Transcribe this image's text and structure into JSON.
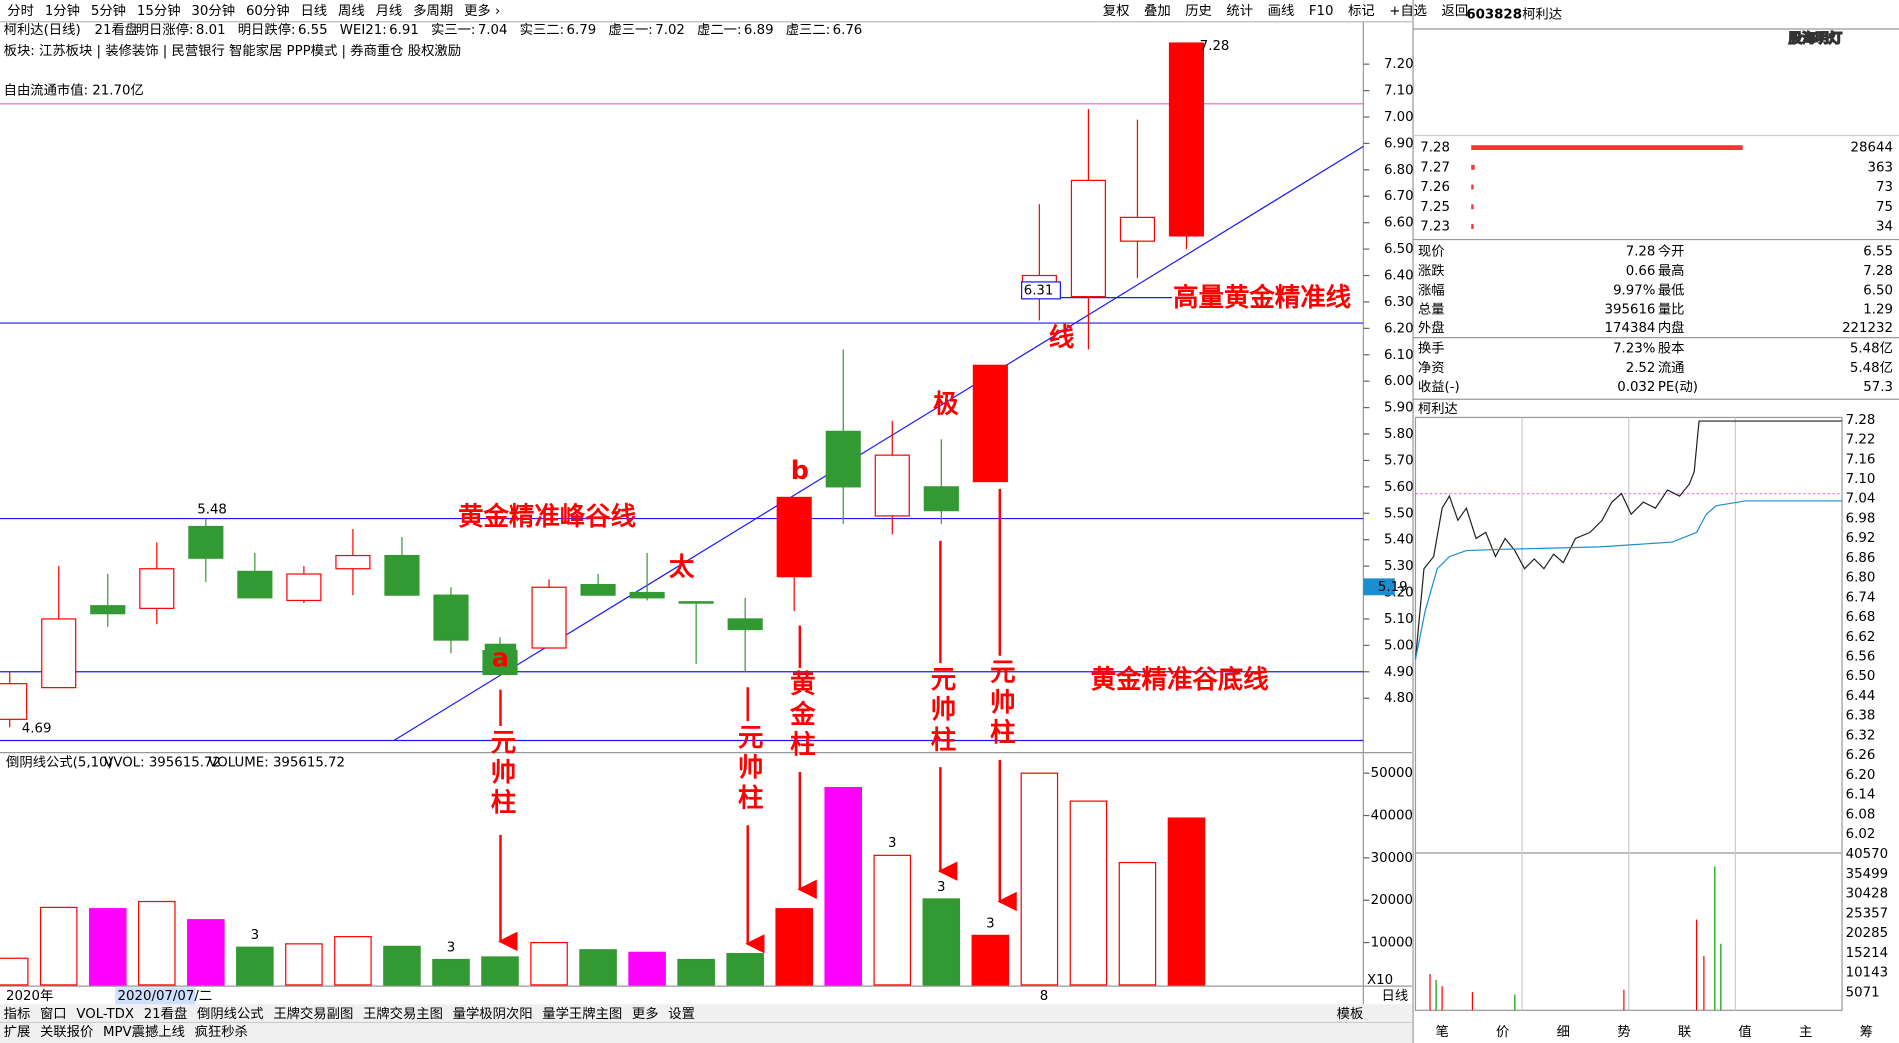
{
  "toolbar": {
    "periods": [
      "分时",
      "1分钟",
      "5分钟",
      "15分钟",
      "30分钟",
      "60分钟",
      "日线",
      "周线",
      "月线",
      "多周期",
      "更多 ›"
    ],
    "tools": [
      "复权",
      "叠加",
      "历史",
      "统计",
      "画线",
      "F10",
      "标记",
      "+自选",
      "返回"
    ]
  },
  "header": {
    "stock": "柯利达(日线)",
    "tab": "21看盘",
    "indicators": [
      {
        "label": "明日涨停:",
        "value": "8.01",
        "color": "#ff0000"
      },
      {
        "label": "明日跌停:",
        "value": "6.55",
        "color": "#00a000"
      },
      {
        "label": "WEI21:",
        "value": "6.91",
        "color": "#000000"
      },
      {
        "label": "实三一:",
        "value": "7.04",
        "color": "#00b0b0"
      },
      {
        "label": "实三二:",
        "value": "6.79",
        "color": "#000000"
      },
      {
        "label": "虚三一:",
        "value": "7.02",
        "color": "#0000ff"
      },
      {
        "label": "虚二一:",
        "value": "6.89",
        "color": "#0000ff"
      },
      {
        "label": "虚三二:",
        "value": "6.76",
        "color": "#808080"
      }
    ],
    "concepts": "板块: 江苏板块 | 装修装饰 | 民营银行 智能家居 PPP模式 | 券商重仓 股权激励",
    "market_cap": "自由流通市值: 21.70亿"
  },
  "chart_data": [
    {
      "type": "candlestick",
      "open": [
        4.72,
        4.84,
        5.15,
        5.14,
        5.45,
        5.28,
        5.17,
        5.29,
        5.34,
        5.19,
        4.98,
        4.99,
        5.23,
        5.2,
        5.165,
        5.1,
        5.26,
        5.81,
        5.49,
        5.6,
        5.62,
        6.32,
        6.32,
        6.53,
        6.55
      ],
      "close": [
        4.855,
        5.1,
        5.12,
        5.29,
        5.33,
        5.18,
        5.27,
        5.34,
        5.19,
        5.02,
        4.89,
        5.22,
        5.19,
        5.18,
        5.16,
        5.06,
        5.56,
        5.6,
        5.72,
        5.51,
        6.06,
        6.4,
        6.76,
        6.62,
        7.28
      ],
      "high": [
        4.9,
        5.3,
        5.27,
        5.39,
        5.48,
        5.35,
        5.3,
        5.44,
        5.41,
        5.22,
        5.03,
        5.25,
        5.27,
        5.35,
        5.16,
        5.18,
        5.56,
        6.12,
        5.85,
        5.78,
        6.06,
        6.67,
        7.03,
        6.99,
        7.28
      ],
      "low": [
        4.69,
        4.84,
        5.07,
        5.08,
        5.24,
        5.18,
        5.16,
        5.19,
        5.19,
        4.97,
        4.89,
        4.99,
        5.19,
        5.17,
        4.93,
        4.9,
        5.13,
        5.46,
        5.42,
        5.46,
        5.62,
        6.23,
        6.12,
        6.39,
        6.5
      ],
      "styles": [
        "hollow",
        "hollow",
        "green",
        "hollow",
        "green",
        "green",
        "hollow",
        "hollow",
        "green",
        "green",
        "green",
        "hollow",
        "green",
        "green",
        "green",
        "green",
        "red",
        "green",
        "hollow",
        "green",
        "red",
        "hollow",
        "hollow",
        "hollow",
        "red"
      ],
      "palette": {
        "hollow": "#ff0000",
        "red": "#ff0000",
        "green": "#339933"
      },
      "ylim": [
        4.6,
        7.3
      ],
      "yticks": [
        {
          "value": 4.8,
          "label": "4.80"
        },
        {
          "value": 4.9,
          "label": "4.90"
        },
        {
          "value": 5.0,
          "label": "5.00"
        },
        {
          "value": 5.1,
          "label": "5.10"
        },
        {
          "value": 5.2,
          "label": "5.20"
        },
        {
          "value": 5.3,
          "label": "5.30"
        },
        {
          "value": 5.4,
          "label": "5.40"
        },
        {
          "value": 5.5,
          "label": "5.50"
        },
        {
          "value": 5.6,
          "label": "5.60"
        },
        {
          "value": 5.7,
          "label": "5.70"
        },
        {
          "value": 5.8,
          "label": "5.80"
        },
        {
          "value": 5.9,
          "label": "5.90"
        },
        {
          "value": 6.0,
          "label": "6.00"
        },
        {
          "value": 6.1,
          "label": "6.10"
        },
        {
          "value": 6.2,
          "label": "6.20"
        },
        {
          "value": 6.3,
          "label": "6.30"
        },
        {
          "value": 6.4,
          "label": "6.40"
        },
        {
          "value": 6.5,
          "label": "6.50"
        },
        {
          "value": 6.6,
          "label": "6.60"
        },
        {
          "value": 6.7,
          "label": "6.70"
        },
        {
          "value": 6.8,
          "label": "6.80"
        },
        {
          "value": 6.9,
          "label": "6.90"
        },
        {
          "value": 7.0,
          "label": "7.00"
        },
        {
          "value": 7.1,
          "label": "7.10"
        },
        {
          "value": 7.2,
          "label": "7.20"
        }
      ],
      "hlines": [
        6.22,
        5.48,
        4.9,
        4.64
      ],
      "ref_line": 7.05,
      "price_notes": [
        "7.28",
        "6.31",
        "5.48",
        "4.69",
        "5.19"
      ],
      "annotations": [
        "高量黄金精准线",
        "线",
        "极",
        "黄金精准峰谷线",
        "太",
        "b",
        "a",
        "黄金精准谷底线"
      ],
      "pillars": [
        "元帅柱",
        "元帅柱",
        "黄金柱",
        "元帅柱",
        "元帅柱"
      ],
      "x_labels": [
        "2020年",
        "2020/07/07/二",
        "8"
      ]
    },
    {
      "type": "bar",
      "title": "倒阴线公式(5,10)",
      "legend": [
        "VVOL: 395615.72",
        "VOLUME: 395615.72"
      ],
      "values": [
        6300,
        18300,
        18000,
        19700,
        15400,
        8900,
        9700,
        11400,
        9100,
        6000,
        6600,
        10000,
        8300,
        7700,
        6000,
        7400,
        18000,
        46600,
        30600,
        20300,
        11700,
        50000,
        43400,
        28900,
        39400
      ],
      "styles": [
        "hollow",
        "hollow",
        "magenta",
        "hollow",
        "magenta",
        "green",
        "hollow",
        "hollow",
        "green",
        "green",
        "green",
        "hollow",
        "green",
        "magenta",
        "green",
        "green",
        "red",
        "magenta",
        "hollow",
        "green",
        "red",
        "hollow",
        "hollow",
        "hollow",
        "red"
      ],
      "palette": {
        "hollow": "#ff0000",
        "red": "#ff0000",
        "green": "#339933",
        "magenta": "#ff00ff"
      },
      "signals": [
        null,
        null,
        null,
        null,
        null,
        "3",
        null,
        null,
        null,
        "3",
        null,
        null,
        null,
        null,
        null,
        null,
        null,
        null,
        "3",
        "3",
        "3",
        null,
        null,
        null,
        null
      ],
      "ylim": [
        0,
        54000
      ],
      "yticks": [
        10000,
        20000,
        30000,
        40000,
        50000
      ],
      "scale_note": "X10"
    }
  ],
  "tabs": [
    "指标",
    "窗口",
    "VOL-TDX",
    "21看盘",
    "倒阴线公式",
    "王牌交易副图",
    "王牌交易主图",
    "量学极阴次阳",
    "量学王牌主图",
    "更多",
    "设置"
  ],
  "tab_right": [
    "模板",
    "日线"
  ],
  "status": [
    "扩展",
    "关联报价",
    "MPV震撼上线",
    "疯狂秒杀"
  ],
  "quote": {
    "code": "603828",
    "name": "柯利达",
    "watermark": "股海明灯",
    "book": {
      "prices": [
        "7.28",
        "7.27",
        "7.26",
        "7.25",
        "7.23"
      ],
      "volumes": [
        28644,
        363,
        73,
        75,
        34
      ]
    },
    "rows": [
      [
        "现价",
        "7.28",
        "今开",
        "6.55"
      ],
      [
        "涨跌",
        "0.66",
        "最高",
        "7.28"
      ],
      [
        "涨幅",
        "9.97%",
        "最低",
        "6.50"
      ],
      [
        "总量",
        "395616",
        "量比",
        "1.29"
      ],
      [
        "外盘",
        "174384",
        "内盘",
        "221232"
      ],
      [
        "换手",
        "7.23%",
        "股本",
        "5.48亿"
      ],
      [
        "净资",
        "2.52",
        "流通",
        "5.48亿"
      ],
      [
        "收益(-)",
        "0.032",
        "PE(动)",
        "57.3"
      ]
    ],
    "row_colors": [
      [
        "#ff0000",
        "#009900"
      ],
      [
        "#ff0000",
        "#ff0000"
      ],
      [
        "#ff0000",
        "#009900"
      ],
      [
        "#000000",
        "#ff0000"
      ],
      [
        "#ff0000",
        "#009900"
      ],
      [
        "#000000",
        "#000000"
      ],
      [
        "#000000",
        "#000000"
      ],
      [
        "#000000",
        "#000000"
      ]
    ]
  },
  "intraday": {
    "title": "柯利达",
    "up_ticks": [
      "7.28",
      "7.22",
      "7.16",
      "7.10",
      "7.04",
      "6.98",
      "6.92",
      "6.86",
      "6.80",
      "6.74",
      "6.68"
    ],
    "mid_tick": "6.62",
    "down_ticks": [
      "6.56",
      "6.50",
      "6.44",
      "6.38",
      "6.32",
      "6.26",
      "6.20",
      "6.14",
      "6.08",
      "6.02"
    ],
    "vol_ticks": [
      "40570",
      "35499",
      "30428",
      "25357",
      "20285",
      "15214",
      "10143",
      "5071"
    ],
    "tabs": [
      "笔",
      "价",
      "细",
      "势",
      "联",
      "值",
      "主",
      "筹"
    ]
  }
}
